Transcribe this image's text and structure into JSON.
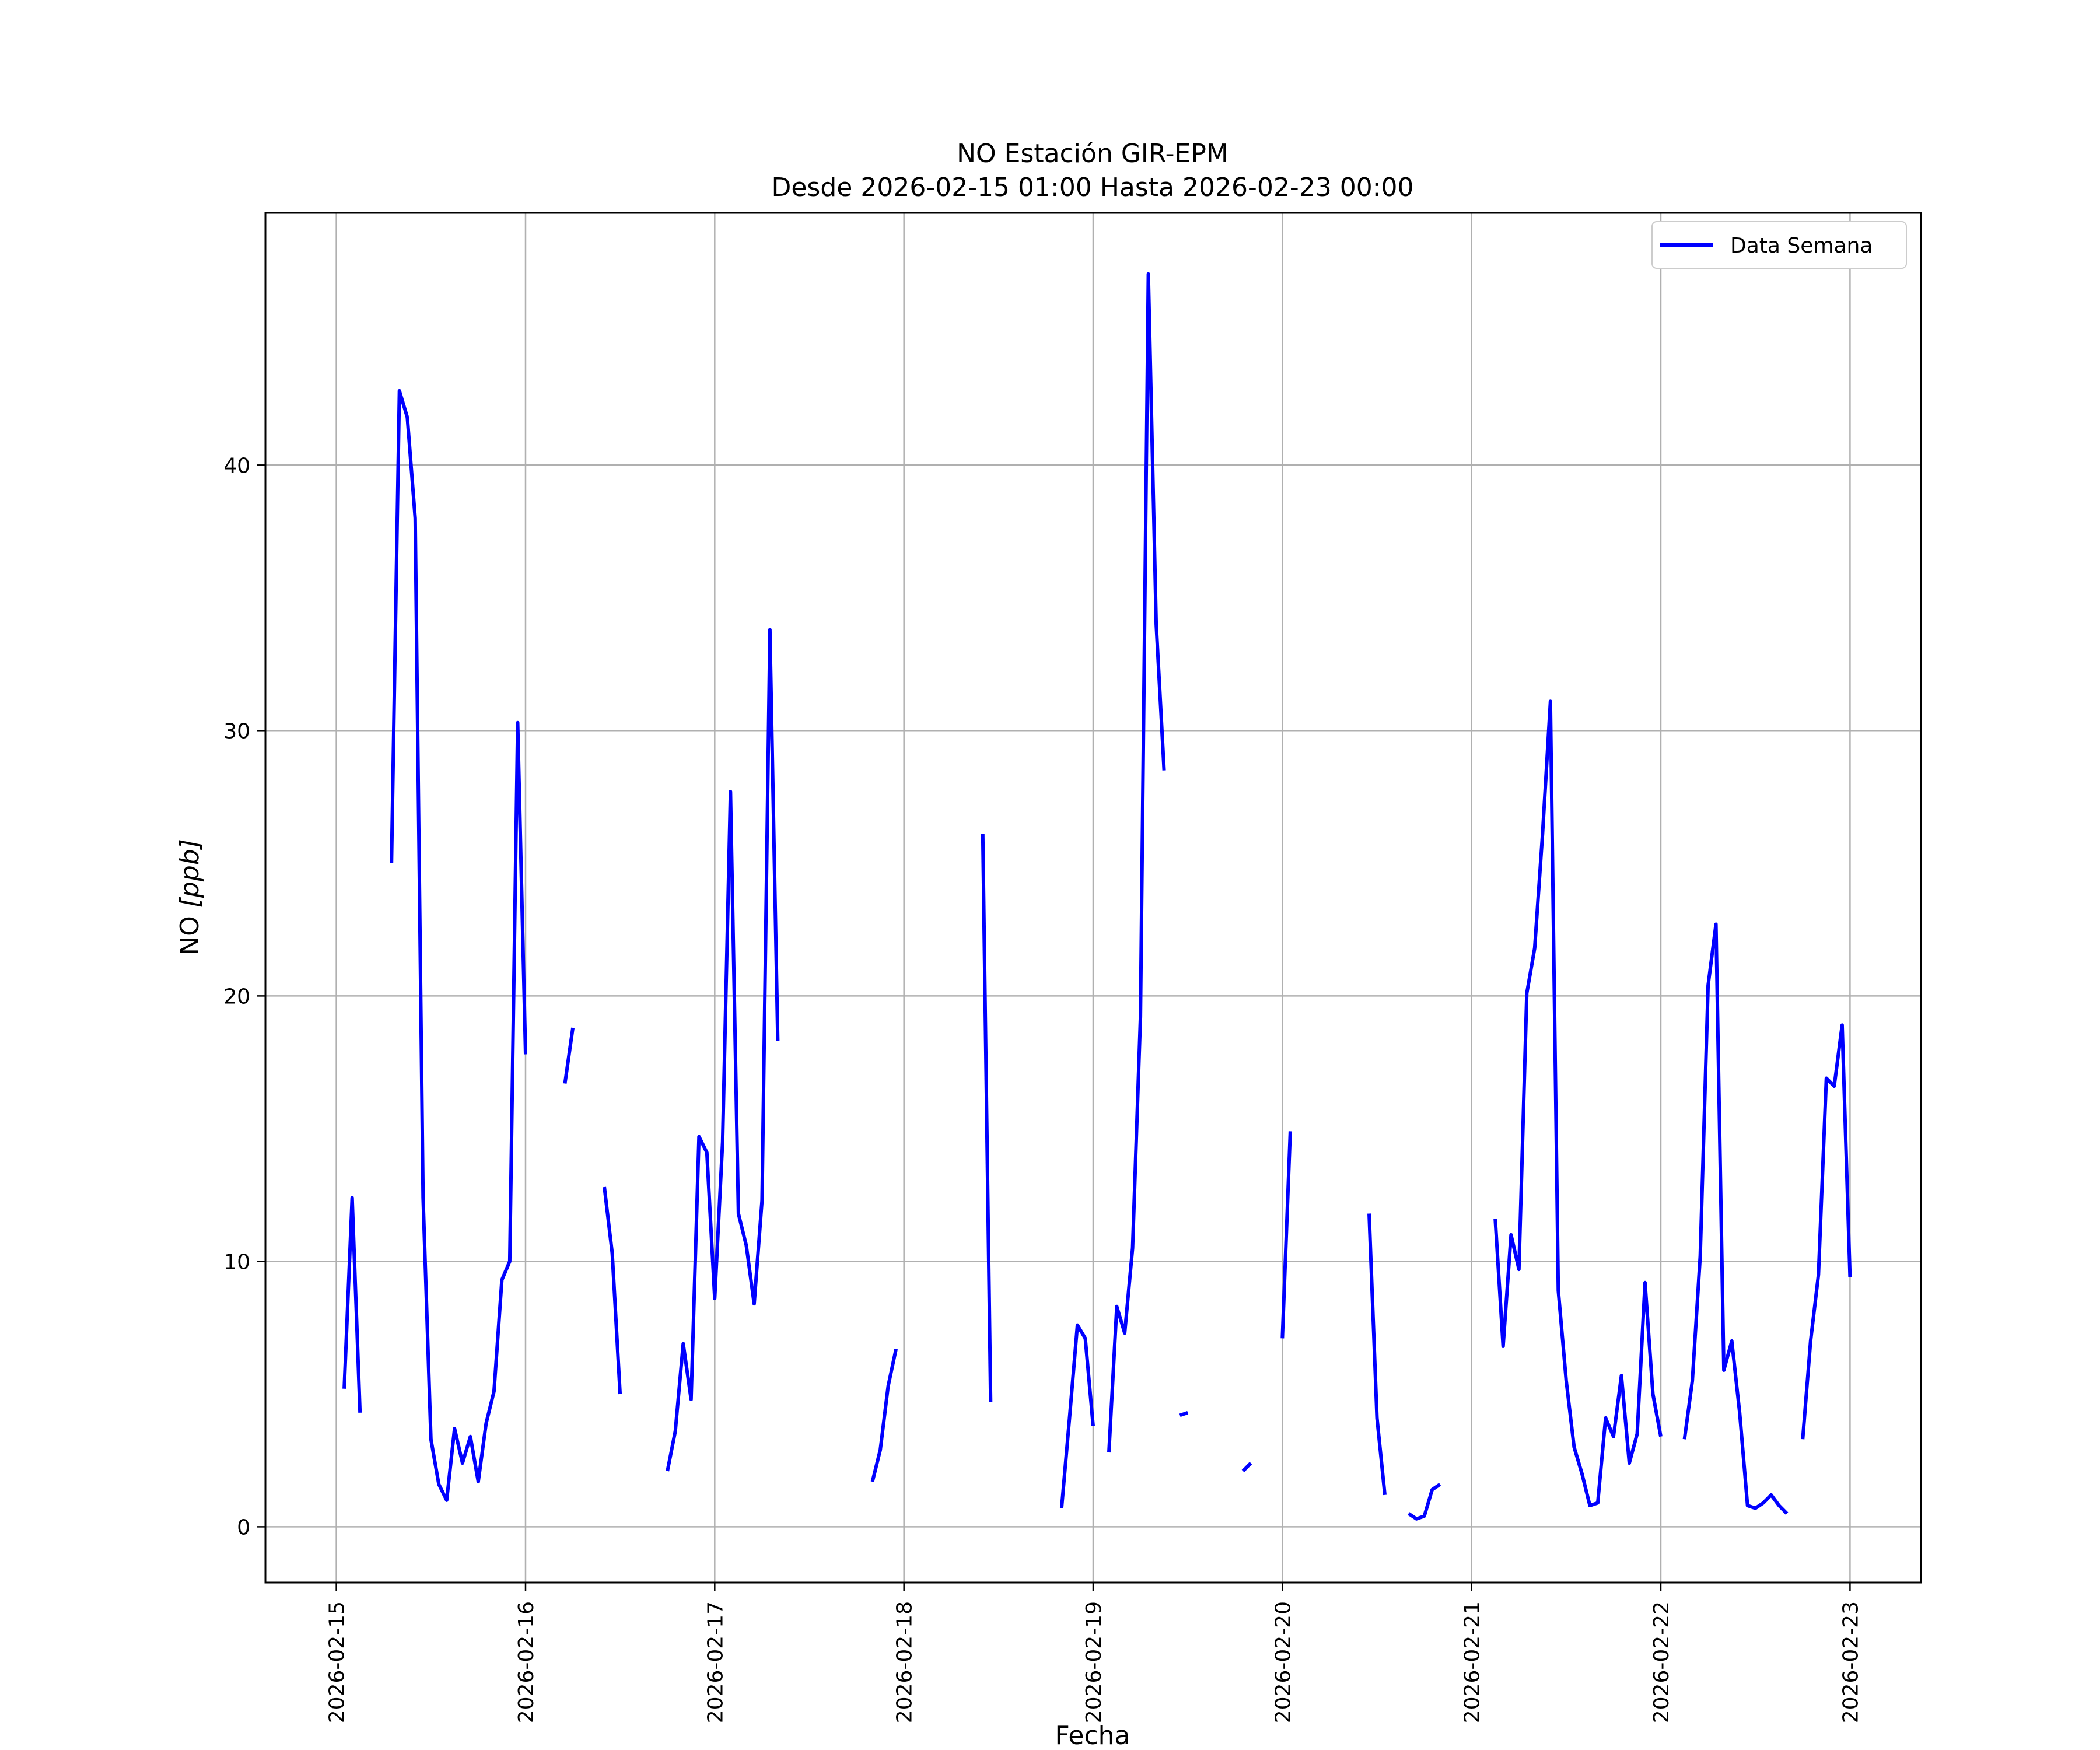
{
  "chart_data": {
    "type": "line",
    "title": "NO Estación GIR-EPM",
    "subtitle": "Desde 2026-02-15 01:00 Hasta 2026-02-23 00:00",
    "xlabel": "Fecha",
    "ylabel_main": "NO ",
    "ylabel_unit": "[ppb]",
    "xlim": [
      "2026-02-14T15:00",
      "2026-02-23T09:00"
    ],
    "ylim": [
      -2.1,
      49.5
    ],
    "x_ticks": [
      "2026-02-15",
      "2026-02-16",
      "2026-02-17",
      "2026-02-18",
      "2026-02-19",
      "2026-02-20",
      "2026-02-21",
      "2026-02-22",
      "2026-02-23"
    ],
    "y_ticks": [
      0,
      10,
      20,
      30,
      40
    ],
    "grid": true,
    "legend": {
      "position": "upper-right",
      "entries": [
        "Data Semana"
      ]
    },
    "colors": {
      "series": "#0000ff",
      "grid": "#b0b0b0"
    },
    "series": [
      {
        "name": "Data Semana",
        "segments": [
          [
            [
              "2026-02-15T01:00",
              5.2
            ],
            [
              "2026-02-15T02:00",
              12.4
            ],
            [
              "2026-02-15T03:00",
              4.3
            ]
          ],
          [
            [
              "2026-02-15T07:00",
              25.0
            ],
            [
              "2026-02-15T08:00",
              42.8
            ],
            [
              "2026-02-15T09:00",
              41.8
            ],
            [
              "2026-02-15T10:00",
              38.0
            ],
            [
              "2026-02-15T11:00",
              12.4
            ],
            [
              "2026-02-15T12:00",
              3.3
            ],
            [
              "2026-02-15T13:00",
              1.6
            ],
            [
              "2026-02-15T14:00",
              1.0
            ],
            [
              "2026-02-15T15:00",
              3.7
            ],
            [
              "2026-02-15T16:00",
              2.4
            ],
            [
              "2026-02-15T17:00",
              3.4
            ],
            [
              "2026-02-15T18:00",
              1.7
            ],
            [
              "2026-02-15T19:00",
              3.9
            ],
            [
              "2026-02-15T20:00",
              5.1
            ],
            [
              "2026-02-15T21:00",
              9.3
            ],
            [
              "2026-02-15T22:00",
              10.0
            ],
            [
              "2026-02-15T23:00",
              30.3
            ],
            [
              "2026-02-16T00:00",
              17.8
            ]
          ],
          [
            [
              "2026-02-16T05:00",
              16.7
            ],
            [
              "2026-02-16T06:00",
              18.8
            ]
          ],
          [
            [
              "2026-02-16T10:00",
              12.8
            ],
            [
              "2026-02-16T11:00",
              10.3
            ],
            [
              "2026-02-16T12:00",
              5.0
            ]
          ],
          [
            [
              "2026-02-16T18:00",
              2.1
            ],
            [
              "2026-02-16T19:00",
              3.6
            ],
            [
              "2026-02-16T20:00",
              6.9
            ],
            [
              "2026-02-16T21:00",
              4.8
            ],
            [
              "2026-02-16T22:00",
              14.7
            ],
            [
              "2026-02-16T23:00",
              14.1
            ],
            [
              "2026-02-17T00:00",
              8.6
            ],
            [
              "2026-02-17T01:00",
              14.5
            ],
            [
              "2026-02-17T02:00",
              27.7
            ],
            [
              "2026-02-17T03:00",
              11.8
            ],
            [
              "2026-02-17T04:00",
              10.6
            ],
            [
              "2026-02-17T05:00",
              8.4
            ],
            [
              "2026-02-17T06:00",
              12.3
            ],
            [
              "2026-02-17T07:00",
              33.8
            ],
            [
              "2026-02-17T08:00",
              18.3
            ]
          ],
          [
            [
              "2026-02-17T20:00",
              1.7
            ],
            [
              "2026-02-17T21:00",
              2.9
            ],
            [
              "2026-02-17T22:00",
              5.3
            ],
            [
              "2026-02-17T23:00",
              6.7
            ]
          ],
          [
            [
              "2026-02-18T10:00",
              26.1
            ],
            [
              "2026-02-18T11:00",
              4.7
            ]
          ],
          [
            [
              "2026-02-18T20:00",
              0.7
            ],
            [
              "2026-02-18T21:00",
              4.1
            ],
            [
              "2026-02-18T22:00",
              7.6
            ],
            [
              "2026-02-18T23:00",
              7.1
            ],
            [
              "2026-02-19T00:00",
              3.8
            ]
          ],
          [
            [
              "2026-02-19T02:00",
              2.8
            ],
            [
              "2026-02-19T03:00",
              8.3
            ],
            [
              "2026-02-19T04:00",
              7.3
            ],
            [
              "2026-02-19T05:00",
              10.5
            ],
            [
              "2026-02-19T06:00",
              19.2
            ],
            [
              "2026-02-19T07:00",
              47.2
            ],
            [
              "2026-02-19T08:00",
              34.0
            ],
            [
              "2026-02-19T09:00",
              28.5
            ]
          ],
          [
            [
              "2026-02-19T11:00",
              4.2
            ],
            [
              "2026-02-19T12:00",
              4.3
            ]
          ],
          [
            [
              "2026-02-19T19:00",
              2.1
            ],
            [
              "2026-02-19T20:00",
              2.4
            ]
          ],
          [
            [
              "2026-02-20T00:00",
              7.1
            ],
            [
              "2026-02-20T01:00",
              14.9
            ]
          ],
          [
            [
              "2026-02-20T11:00",
              11.8
            ],
            [
              "2026-02-20T12:00",
              4.1
            ],
            [
              "2026-02-20T13:00",
              1.2
            ]
          ],
          [
            [
              "2026-02-20T16:00",
              0.5
            ],
            [
              "2026-02-20T17:00",
              0.3
            ],
            [
              "2026-02-20T18:00",
              0.4
            ],
            [
              "2026-02-20T19:00",
              1.4
            ],
            [
              "2026-02-20T20:00",
              1.6
            ]
          ],
          [
            [
              "2026-02-21T03:00",
              11.6
            ],
            [
              "2026-02-21T04:00",
              6.8
            ],
            [
              "2026-02-21T05:00",
              11.0
            ],
            [
              "2026-02-21T06:00",
              9.7
            ],
            [
              "2026-02-21T07:00",
              20.1
            ],
            [
              "2026-02-21T08:00",
              21.8
            ],
            [
              "2026-02-21T09:00",
              26.1
            ],
            [
              "2026-02-21T10:00",
              31.1
            ],
            [
              "2026-02-21T11:00",
              8.9
            ],
            [
              "2026-02-21T12:00",
              5.5
            ],
            [
              "2026-02-21T13:00",
              3.0
            ],
            [
              "2026-02-21T14:00",
              2.0
            ],
            [
              "2026-02-21T15:00",
              0.8
            ],
            [
              "2026-02-21T16:00",
              0.9
            ],
            [
              "2026-02-21T17:00",
              4.1
            ],
            [
              "2026-02-21T18:00",
              3.4
            ],
            [
              "2026-02-21T19:00",
              5.7
            ],
            [
              "2026-02-21T20:00",
              2.4
            ],
            [
              "2026-02-21T21:00",
              3.5
            ],
            [
              "2026-02-21T22:00",
              9.2
            ],
            [
              "2026-02-21T23:00",
              5.0
            ],
            [
              "2026-02-22T00:00",
              3.4
            ]
          ],
          [
            [
              "2026-02-22T03:00",
              3.3
            ],
            [
              "2026-02-22T04:00",
              5.5
            ],
            [
              "2026-02-22T05:00",
              10.2
            ],
            [
              "2026-02-22T06:00",
              20.4
            ],
            [
              "2026-02-22T07:00",
              22.7
            ],
            [
              "2026-02-22T08:00",
              5.9
            ],
            [
              "2026-02-22T09:00",
              7.0
            ],
            [
              "2026-02-22T10:00",
              4.3
            ],
            [
              "2026-02-22T11:00",
              0.8
            ],
            [
              "2026-02-22T12:00",
              0.7
            ],
            [
              "2026-02-22T13:00",
              0.9
            ],
            [
              "2026-02-22T14:00",
              1.2
            ],
            [
              "2026-02-22T15:00",
              0.8
            ],
            [
              "2026-02-22T16:00",
              0.5
            ]
          ],
          [
            [
              "2026-02-22T18:00",
              3.3
            ],
            [
              "2026-02-22T19:00",
              7.0
            ],
            [
              "2026-02-22T20:00",
              9.5
            ],
            [
              "2026-02-22T21:00",
              16.9
            ],
            [
              "2026-02-22T22:00",
              16.6
            ],
            [
              "2026-02-22T23:00",
              18.9
            ],
            [
              "2026-02-23T00:00",
              9.4
            ]
          ]
        ]
      }
    ]
  }
}
